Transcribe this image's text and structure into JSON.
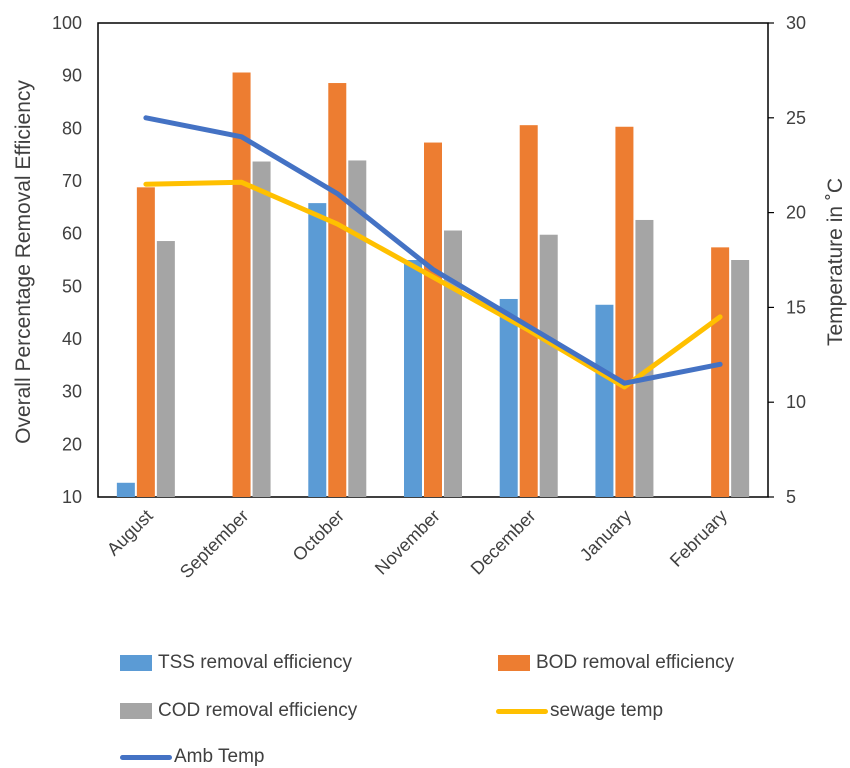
{
  "chart_data": {
    "type": "bar",
    "categories": [
      "August",
      "September",
      "October",
      "November",
      "December",
      "January",
      "February"
    ],
    "series": [
      {
        "name": "TSS removal efficiency",
        "type": "bar",
        "axis": "left",
        "color": "#5B9BD5",
        "values": [
          12.7,
          9.8,
          65.8,
          55.0,
          47.6,
          46.5,
          9.8
        ]
      },
      {
        "name": "BOD removal efficiency",
        "type": "bar",
        "axis": "left",
        "color": "#ED7D31",
        "values": [
          68.8,
          90.6,
          88.6,
          77.3,
          80.6,
          80.3,
          57.4
        ]
      },
      {
        "name": "COD removal efficiency",
        "type": "bar",
        "axis": "left",
        "color": "#A5A5A5",
        "values": [
          58.6,
          73.7,
          73.9,
          60.6,
          59.8,
          62.6,
          55.0
        ]
      },
      {
        "name": "sewage temp",
        "type": "line",
        "axis": "right",
        "color": "#FFC000",
        "values": [
          21.5,
          21.6,
          19.4,
          16.6,
          13.8,
          10.8,
          14.5
        ]
      },
      {
        "name": "Amb Temp",
        "type": "line",
        "axis": "right",
        "color": "#4472C4",
        "values": [
          25.0,
          24.0,
          21.0,
          17.0,
          14.0,
          11.0,
          12.0
        ]
      }
    ],
    "ylabel": "Overall Percentage Removal Efficiency",
    "y2label": "Temperature in ˚C",
    "ylim": [
      10,
      100
    ],
    "y2lim": [
      5,
      30
    ],
    "yticks": [
      "10",
      "20",
      "30",
      "40",
      "50",
      "60",
      "70",
      "80",
      "90",
      "100"
    ],
    "y2ticks": [
      "5",
      "10",
      "15",
      "20",
      "25",
      "30"
    ],
    "grid": false,
    "legend_position": "bottom"
  }
}
